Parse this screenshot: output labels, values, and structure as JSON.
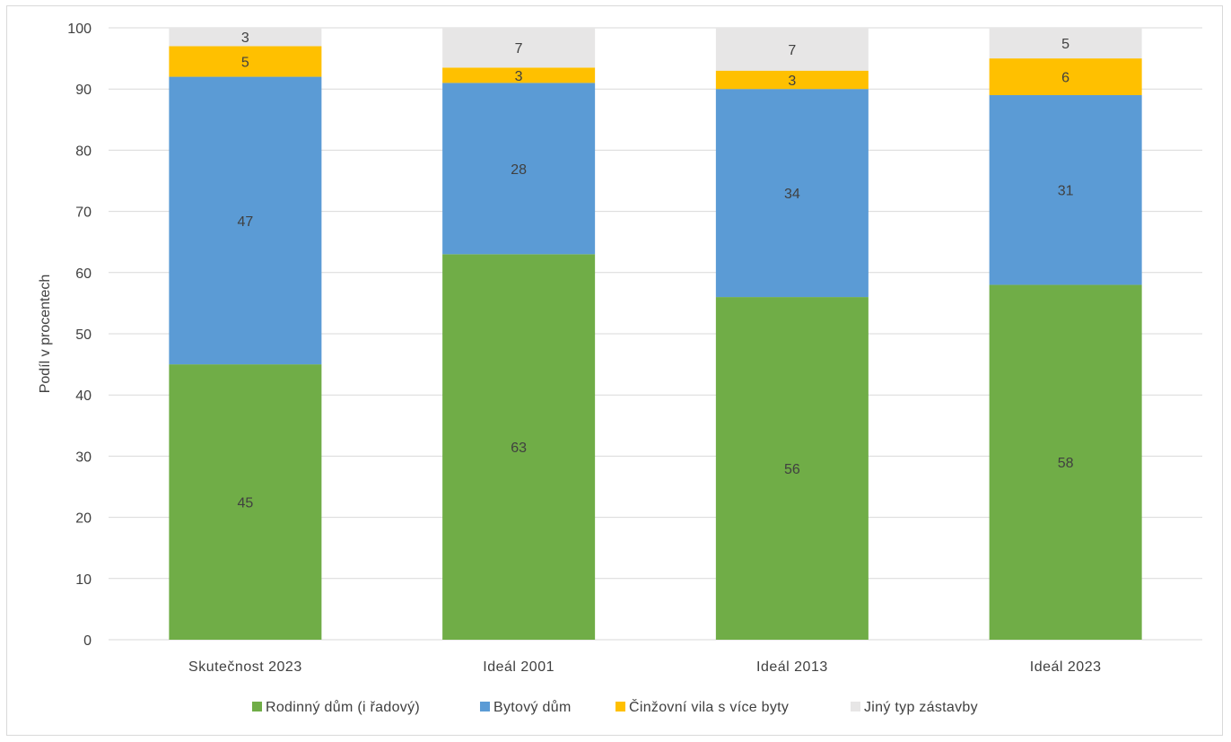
{
  "chart_data": {
    "type": "bar",
    "stacked": true,
    "categories": [
      "Skutečnost 2023",
      "Ideál 2001",
      "Ideál 2013",
      "Ideál 2023"
    ],
    "series": [
      {
        "name": "Rodinný dům (i řadový)",
        "color": "#70ad47",
        "values": [
          45,
          63,
          56,
          58
        ],
        "labels": [
          "45",
          "63",
          "56",
          "58"
        ]
      },
      {
        "name": "Bytový dům",
        "color": "#5b9bd5",
        "values": [
          47,
          28,
          34,
          31
        ],
        "labels": [
          "47",
          "28",
          "34",
          "31"
        ]
      },
      {
        "name": "Činžovní vila s více byty",
        "color": "#ffc000",
        "values": [
          5,
          2.5,
          3,
          6
        ],
        "labels": [
          "5",
          "3",
          "3",
          "6"
        ]
      },
      {
        "name": "Jiný typ zástavby",
        "color": "#e7e6e6",
        "values": [
          3,
          6.5,
          7,
          5
        ],
        "labels": [
          "3",
          "7",
          "7",
          "5"
        ]
      }
    ],
    "ylabel": "Podíl v procentech",
    "xlabel": "",
    "ylim": [
      0,
      100
    ],
    "yticks": [
      0,
      10,
      20,
      30,
      40,
      50,
      60,
      70,
      80,
      90,
      100
    ],
    "grid": true,
    "legend": "bottom"
  }
}
